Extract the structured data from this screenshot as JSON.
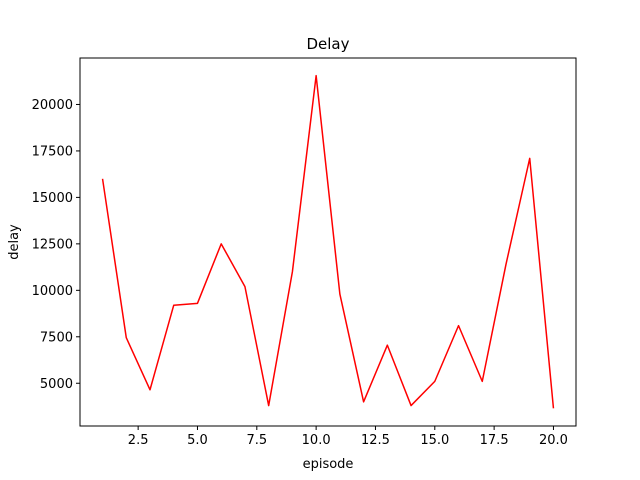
{
  "chart_data": {
    "type": "line",
    "title": "Delay",
    "xlabel": "episode",
    "ylabel": "delay",
    "xlim": [
      0.05,
      20.95
    ],
    "ylim": [
      2700,
      22500
    ],
    "xticks": [
      2.5,
      5.0,
      7.5,
      10.0,
      12.5,
      15.0,
      17.5,
      20.0
    ],
    "xtick_labels": [
      "2.5",
      "5.0",
      "7.5",
      "10.0",
      "12.5",
      "15.0",
      "17.5",
      "20.0"
    ],
    "yticks": [
      5000,
      7500,
      10000,
      12500,
      15000,
      17500,
      20000
    ],
    "ytick_labels": [
      "5000",
      "7500",
      "10000",
      "12500",
      "15000",
      "17500",
      "20000"
    ],
    "grid": false,
    "series": [
      {
        "color": "#ff0000",
        "x": [
          1,
          2,
          3,
          4,
          5,
          6,
          7,
          8,
          9,
          10,
          11,
          12,
          13,
          14,
          15,
          16,
          17,
          18,
          19,
          20
        ],
        "y": [
          16000,
          7450,
          4650,
          9200,
          9300,
          12500,
          10200,
          3800,
          11000,
          21550,
          9800,
          4000,
          7050,
          3800,
          5100,
          8100,
          5100,
          11400,
          17100,
          3650
        ]
      }
    ]
  }
}
